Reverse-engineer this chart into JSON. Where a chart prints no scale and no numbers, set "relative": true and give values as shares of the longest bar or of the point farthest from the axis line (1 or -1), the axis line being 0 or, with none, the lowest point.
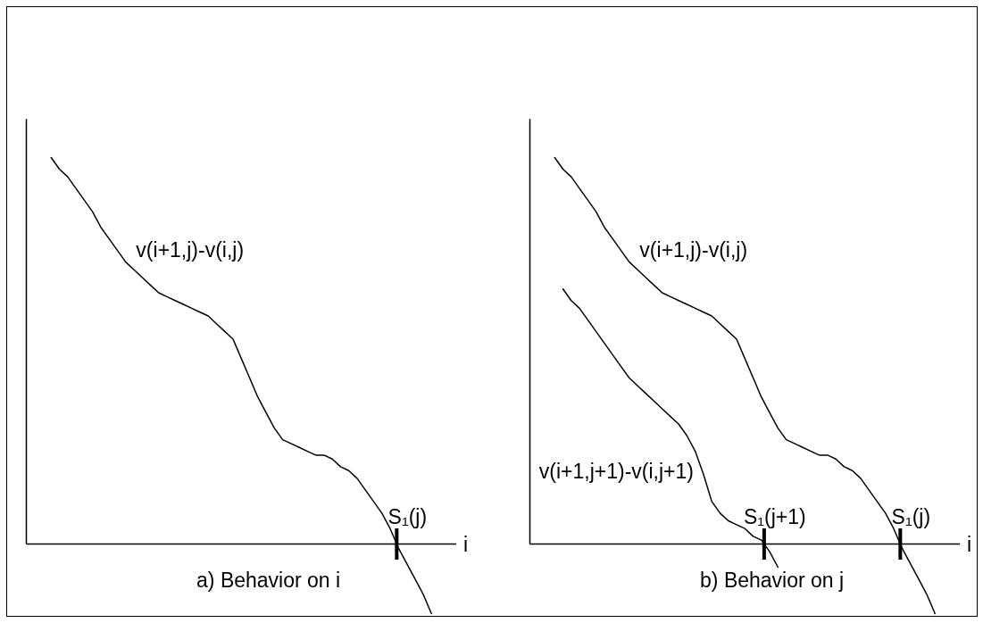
{
  "chart_data": [
    {
      "type": "line",
      "title": "a) Behavior on i",
      "xlabel": "i",
      "relative": true,
      "line_style": "solid",
      "categories": [
        null,
        null,
        null,
        null,
        null,
        null,
        null,
        null,
        null,
        null,
        null,
        null,
        null,
        null,
        null,
        null,
        null,
        null,
        null,
        null,
        null,
        null,
        null,
        null,
        null,
        null,
        null,
        null,
        null,
        null,
        null,
        null,
        null,
        null,
        null,
        null,
        null,
        null,
        null,
        null,
        null,
        null,
        null,
        null,
        null,
        null,
        null,
        null,
        null,
        null,
        null,
        null,
        null
      ],
      "series": [
        {
          "name": "v(i+1,j)-v(i,j)",
          "color": "#000000",
          "values": [
            null,
            null,
            null,
            1.0,
            0.97,
            0.95,
            0.92,
            0.89,
            0.86,
            0.82,
            0.79,
            0.76,
            0.73,
            0.71,
            0.69,
            0.67,
            0.65,
            0.64,
            0.63,
            0.62,
            0.61,
            0.6,
            0.59,
            0.57,
            0.55,
            0.53,
            0.48,
            0.43,
            0.38,
            0.34,
            0.3,
            0.27,
            0.26,
            0.25,
            0.24,
            0.23,
            0.23,
            0.22,
            0.2,
            0.19,
            0.17,
            0.14,
            0.11,
            0.08,
            0.04,
            -0.01,
            -0.05,
            -0.09,
            -0.13,
            -0.18,
            null,
            null,
            null
          ]
        }
      ],
      "annotations": [
        "S₁(j)"
      ]
    },
    {
      "type": "line",
      "title": "b) Behavior on j",
      "xlabel": "i",
      "relative": true,
      "line_style": "solid",
      "categories": [
        null,
        null,
        null,
        null,
        null,
        null,
        null,
        null,
        null,
        null,
        null,
        null,
        null,
        null,
        null,
        null,
        null,
        null,
        null,
        null,
        null,
        null,
        null,
        null,
        null,
        null,
        null,
        null,
        null,
        null,
        null,
        null,
        null,
        null,
        null,
        null,
        null,
        null,
        null,
        null,
        null,
        null,
        null,
        null,
        null,
        null,
        null,
        null,
        null,
        null,
        null,
        null,
        null
      ],
      "series": [
        {
          "name": "v(i+1,j)-v(i,j)",
          "color": "#000000",
          "values": [
            null,
            null,
            null,
            1.0,
            0.97,
            0.95,
            0.92,
            0.89,
            0.86,
            0.82,
            0.79,
            0.76,
            0.73,
            0.71,
            0.69,
            0.67,
            0.65,
            0.64,
            0.63,
            0.62,
            0.61,
            0.6,
            0.59,
            0.57,
            0.55,
            0.53,
            0.48,
            0.43,
            0.38,
            0.34,
            0.3,
            0.27,
            0.26,
            0.25,
            0.24,
            0.23,
            0.23,
            0.22,
            0.2,
            0.19,
            0.17,
            0.14,
            0.11,
            0.08,
            0.04,
            -0.01,
            -0.05,
            -0.09,
            -0.13,
            -0.18,
            null,
            null,
            null
          ]
        },
        {
          "name": "v(i+1,j+1)-v(i,j+1)",
          "color": "#000000",
          "values": [
            null,
            null,
            null,
            null,
            0.66,
            0.63,
            0.61,
            0.58,
            0.55,
            0.52,
            0.49,
            0.46,
            0.43,
            0.41,
            0.39,
            0.37,
            0.35,
            0.33,
            0.31,
            0.28,
            0.24,
            0.18,
            0.11,
            0.08,
            0.06,
            0.05,
            0.04,
            0.02,
            0.01,
            -0.02,
            -0.06,
            null,
            null,
            null,
            null,
            null,
            null,
            null,
            null,
            null,
            null,
            null,
            null,
            null,
            null,
            null,
            null,
            null,
            null,
            null,
            null,
            null,
            null
          ]
        }
      ],
      "annotations": [
        "S₁(j+1)",
        "S₁(j)"
      ]
    }
  ]
}
